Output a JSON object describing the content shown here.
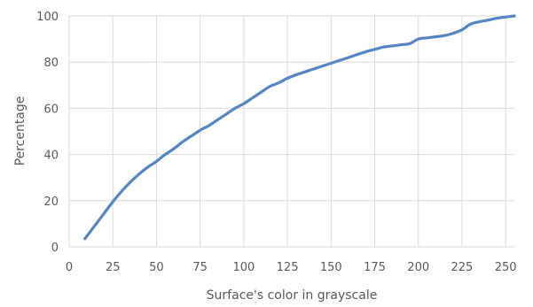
{
  "chart_data": {
    "type": "line",
    "title": "",
    "xlabel": "Surface's color in grayscale",
    "ylabel": "Percentage",
    "xlim": [
      0,
      255
    ],
    "ylim": [
      0,
      100
    ],
    "xticks": [
      0,
      25,
      50,
      75,
      100,
      125,
      150,
      175,
      200,
      225,
      250
    ],
    "yticks": [
      0,
      20,
      40,
      60,
      80,
      100
    ],
    "grid": true,
    "legend": "none",
    "color": "#5585C3",
    "series": [
      {
        "x": [
          9,
          15,
          20,
          25,
          30,
          35,
          40,
          45,
          50,
          55,
          60,
          65,
          70,
          75,
          80,
          85,
          90,
          95,
          100,
          105,
          110,
          115,
          120,
          125,
          130,
          140,
          150,
          160,
          170,
          175,
          180,
          185,
          190,
          195,
          200,
          205,
          210,
          215,
          220,
          225,
          230,
          235,
          240,
          245,
          250,
          255
        ],
        "y": [
          3.5,
          9.5,
          14.5,
          19.5,
          24,
          28,
          31.5,
          34.5,
          37,
          40,
          42.5,
          45.5,
          48,
          50.5,
          52.5,
          55,
          57.5,
          60,
          62,
          64.5,
          67,
          69.5,
          71,
          73,
          74.5,
          77,
          79.5,
          82,
          84.5,
          85.5,
          86.5,
          87,
          87.5,
          88,
          90,
          90.5,
          91,
          91.5,
          92.5,
          94,
          96.5,
          97.5,
          98.2,
          99,
          99.5,
          100
        ]
      }
    ]
  }
}
